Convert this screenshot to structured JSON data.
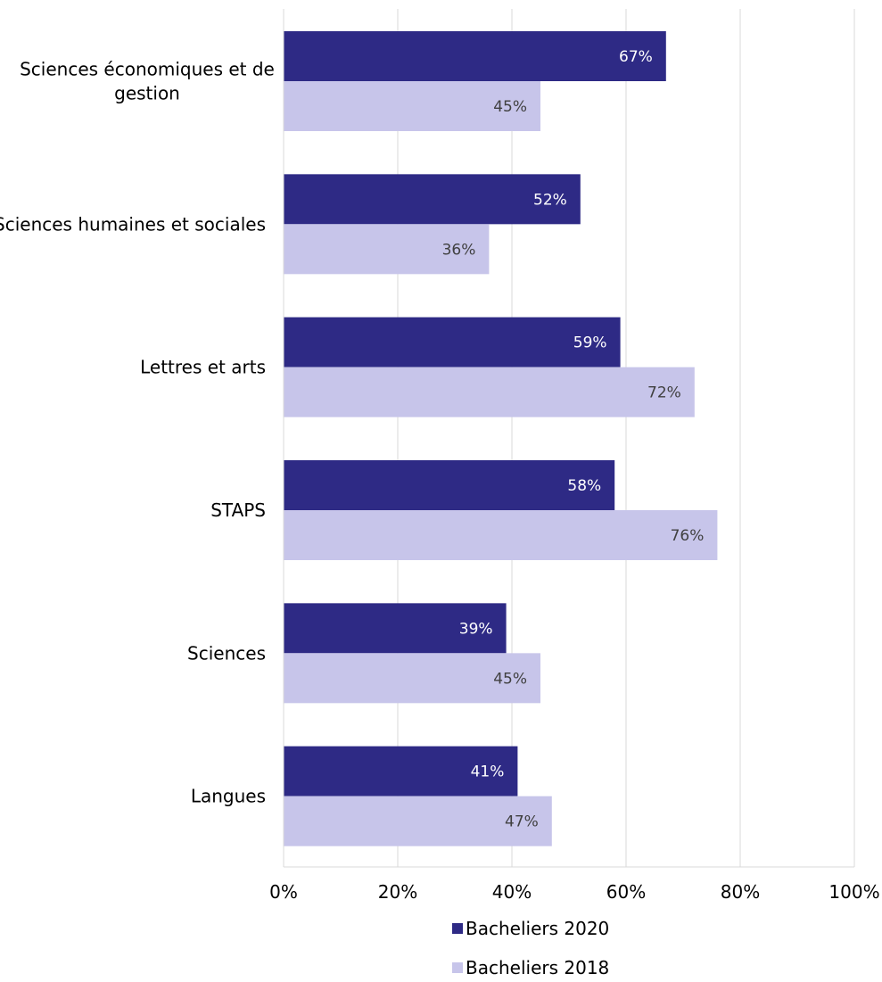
{
  "chart_data": {
    "type": "bar",
    "orientation": "horizontal",
    "categories": [
      "Sciences économiques et de gestion",
      "Sciences humaines et sociales",
      "Lettres et arts",
      "STAPS",
      "Sciences",
      "Langues"
    ],
    "category_lines": [
      [
        "Sciences économiques et de",
        "gestion"
      ],
      [
        "Sciences humaines et sociales"
      ],
      [
        "Lettres et arts"
      ],
      [
        "STAPS"
      ],
      [
        "Sciences"
      ],
      [
        "Langues"
      ]
    ],
    "series": [
      {
        "name": "Bacheliers 2020",
        "color": "#2e2a85",
        "label_color": "#ffffff",
        "values": [
          67,
          52,
          59,
          58,
          39,
          41
        ],
        "labels": [
          "67%",
          "52%",
          "59%",
          "58%",
          "39%",
          "41%"
        ]
      },
      {
        "name": "Bacheliers 2018",
        "color": "#c7c5ea",
        "label_color": "#404040",
        "values": [
          45,
          36,
          72,
          76,
          45,
          47
        ],
        "labels": [
          "45%",
          "36%",
          "72%",
          "76%",
          "45%",
          "47%"
        ]
      }
    ],
    "xlim": [
      0,
      100
    ],
    "x_ticks": [
      0,
      20,
      40,
      60,
      80,
      100
    ],
    "x_tick_labels": [
      "0%",
      "20%",
      "40%",
      "60%",
      "80%",
      "100%"
    ],
    "grid": true,
    "legend_position": "bottom"
  }
}
